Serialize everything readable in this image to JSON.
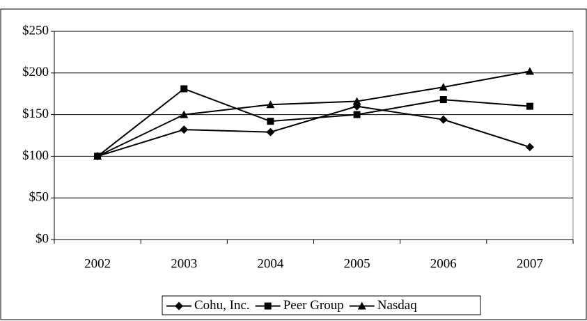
{
  "chart_data": {
    "type": "line",
    "categories": [
      "2002",
      "2003",
      "2004",
      "2005",
      "2006",
      "2007"
    ],
    "series": [
      {
        "name": "Cohu, Inc.",
        "color": "#000000",
        "marker": "diamond",
        "values": [
          100,
          132,
          129,
          160,
          144,
          111
        ]
      },
      {
        "name": "Peer Group",
        "color": "#000000",
        "marker": "square",
        "values": [
          100,
          181,
          142,
          150,
          168,
          160
        ]
      },
      {
        "name": "Nasdaq",
        "color": "#000000",
        "marker": "triangle",
        "values": [
          100,
          150,
          162,
          166,
          183,
          202
        ]
      }
    ],
    "ylim": [
      0,
      250
    ],
    "yticks": [
      {
        "value": 0,
        "label": "$0"
      },
      {
        "value": 50,
        "label": "$50"
      },
      {
        "value": 100,
        "label": "$100"
      },
      {
        "value": 150,
        "label": "$150"
      },
      {
        "value": 200,
        "label": "$200"
      },
      {
        "value": 250,
        "label": "$250"
      }
    ],
    "grid": true,
    "legend": "bottom"
  }
}
